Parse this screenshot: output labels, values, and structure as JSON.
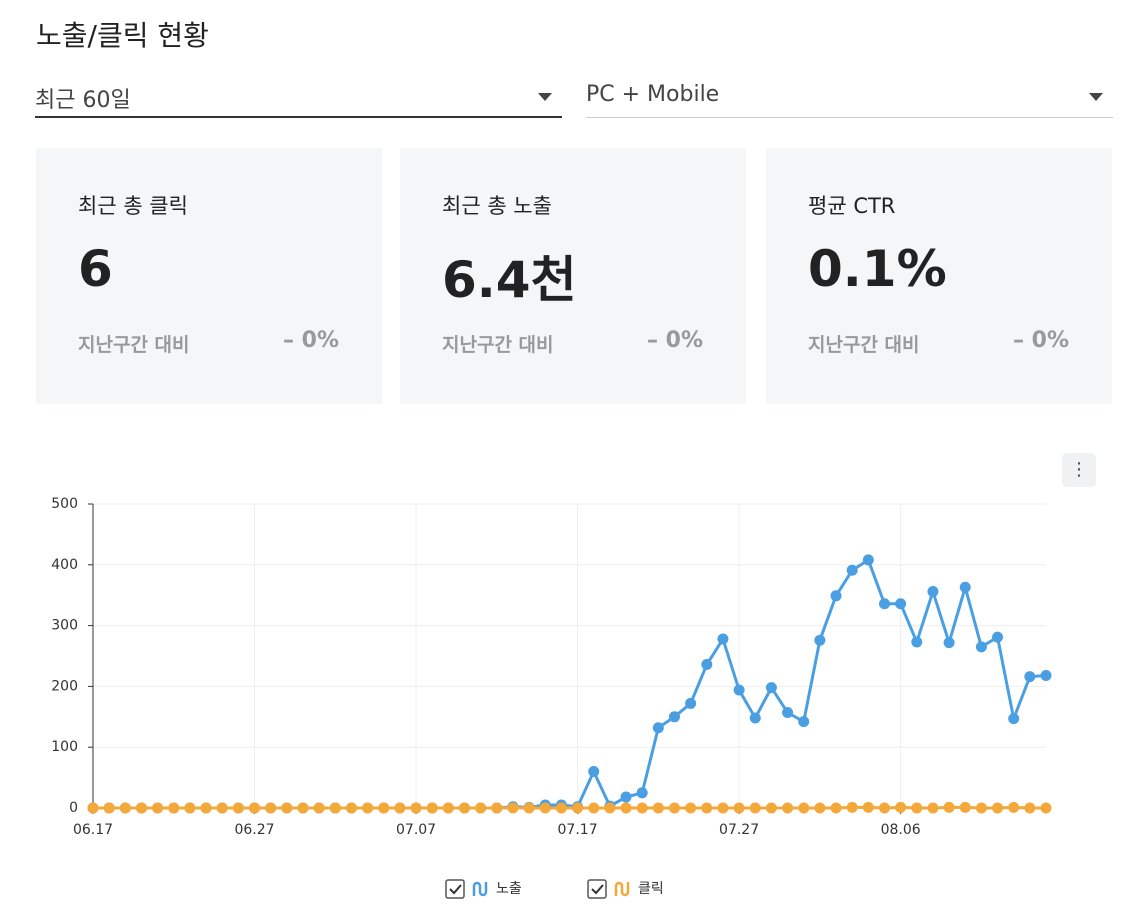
{
  "header": {
    "title": "노출/클릭 현황"
  },
  "filters": [
    {
      "value": "최근 60일"
    },
    {
      "value": "PC + Mobile"
    }
  ],
  "cards": [
    {
      "label": "최근 총 클릭",
      "value": "6",
      "compare_label": "지난구간 대비",
      "compare_value": "– 0%"
    },
    {
      "label": "최근 총 노출",
      "value": "6.4천",
      "compare_label": "지난구간 대비",
      "compare_value": "– 0%"
    },
    {
      "label": "평균 CTR",
      "value": "0.1%",
      "compare_label": "지난구간 대비",
      "compare_value": "– 0%"
    }
  ],
  "chart_data": {
    "type": "line",
    "categories": [
      "06.17",
      null,
      null,
      null,
      null,
      null,
      null,
      null,
      null,
      null,
      "06.27",
      null,
      null,
      null,
      null,
      null,
      null,
      null,
      null,
      null,
      "07.07",
      null,
      null,
      null,
      null,
      null,
      null,
      null,
      null,
      null,
      "07.17",
      null,
      null,
      null,
      null,
      null,
      null,
      null,
      null,
      null,
      "07.27",
      null,
      null,
      null,
      null,
      null,
      null,
      null,
      null,
      null,
      "08.06",
      null,
      null,
      null,
      null,
      null,
      null,
      null,
      null,
      null
    ],
    "series": [
      {
        "name": "노출",
        "color": "#4a9fe3",
        "values": [
          0,
          0,
          0,
          0,
          0,
          0,
          0,
          0,
          0,
          0,
          0,
          0,
          0,
          0,
          0,
          0,
          0,
          0,
          0,
          0,
          0,
          0,
          0,
          0,
          0,
          0,
          2,
          1,
          5,
          5,
          2,
          60,
          3,
          18,
          25,
          132,
          150,
          172,
          236,
          278,
          194,
          148,
          198,
          157,
          142,
          276,
          349,
          391,
          408,
          336,
          336,
          273,
          356,
          272,
          363,
          265,
          281,
          147,
          216,
          218
        ]
      },
      {
        "name": "클릭",
        "color": "#f5a83a",
        "values": [
          0,
          0,
          0,
          0,
          0,
          0,
          0,
          0,
          0,
          0,
          0,
          0,
          0,
          0,
          0,
          0,
          0,
          0,
          0,
          0,
          0,
          0,
          0,
          0,
          0,
          0,
          0,
          0,
          0,
          0,
          0,
          0,
          0,
          0,
          0,
          0,
          0,
          0,
          0,
          0,
          0,
          0,
          0,
          0,
          0,
          0,
          0,
          1,
          1,
          0,
          1,
          0,
          0,
          1,
          1,
          0,
          0,
          1,
          0,
          0
        ]
      }
    ],
    "ylim": [
      0,
      500
    ],
    "yticks": [
      0,
      100,
      200,
      300,
      400,
      500
    ],
    "grid": true
  }
}
